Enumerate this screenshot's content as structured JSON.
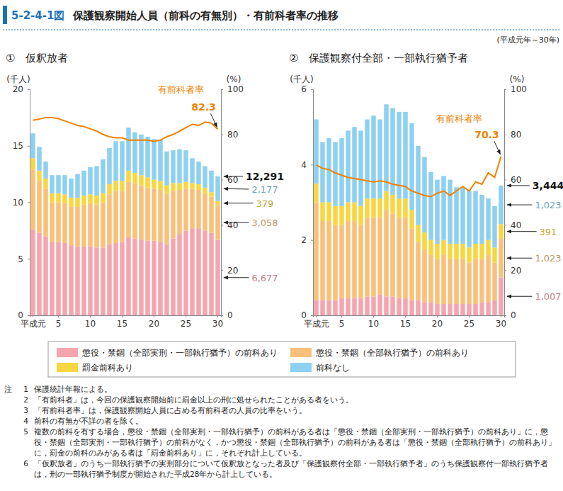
{
  "figure_number": "5-2-4-1図",
  "title": "保護観察開始人員（前科の有無別）・有前科者率の推移",
  "subtitle": "(平成元年～30年)",
  "notes_label": "注",
  "notes": [
    {
      "number": 1,
      "text": "保護統計年報による。"
    },
    {
      "number": 2,
      "text": "「有前科者」は，今回の保護観察開始前に罰金以上の刑に処せられたことがある者をいう。"
    },
    {
      "number": 3,
      "text": "「有前科者率」は，保護観察開始人員に占める有前科者の人員の比率をいう。"
    },
    {
      "number": 4,
      "text": "前科の有無が不詳の者を除く。"
    },
    {
      "number": 5,
      "text": "複数の前科を有する場合，懲役・禁錮（全部実刑・一部執行猶予）の前科がある者は「懲役・禁錮（全部実刑・一部執行猶予）の前科あり」に，懲役・禁錮（全部実刑・一部執行猶予）の前科がなく，かつ懲役・禁錮（全部執行猶予）の前科がある者は「懲役・禁錮（全部執行猶予）の前科あり」に，罰金の前科のみがある者は「罰金前科あり」に，それぞれ計上している。"
    },
    {
      "number": 6,
      "text": "「仮釈放者」のうち一部執行猶予の実刑部分について仮釈放となった者及び「保護観察付全部・一部執行猶予者」のうち保護観察付一部執行猶予者は，刑の一部執行猶予制度が開始された平成28年から計上している。"
    }
  ],
  "chart_data": [
    {
      "type": "bar",
      "stacked": true,
      "legend": "bottom",
      "title": "①　仮釈放者",
      "ylabel": "(千人)",
      "y2label": "(%)",
      "categories": [
        "平成元",
        null,
        null,
        null,
        "5",
        null,
        null,
        null,
        null,
        "10",
        null,
        null,
        null,
        null,
        "15",
        null,
        null,
        null,
        null,
        "20",
        null,
        null,
        null,
        null,
        "25",
        null,
        null,
        null,
        null,
        "30"
      ],
      "ylim": [
        0,
        20
      ],
      "yticks": [
        0,
        5,
        10,
        15,
        20
      ],
      "y2lim": [
        0,
        100
      ],
      "y2ticks": [
        0,
        20,
        40,
        60,
        80,
        100
      ],
      "series": [
        {
          "name": "懲役・禁錮（全部実刑・一部執行猶予）の前科あり",
          "color": "#f5a5ae",
          "values": [
            7.6,
            7.3,
            7.0,
            6.5,
            6.5,
            6.4,
            6.2,
            6.1,
            6.1,
            6.1,
            6.0,
            6.0,
            6.3,
            6.4,
            6.5,
            6.9,
            6.8,
            6.7,
            6.6,
            6.6,
            6.5,
            6.3,
            6.8,
            7.2,
            7.5,
            7.7,
            7.7,
            7.5,
            7.3,
            6.677
          ],
          "value_labels": [
            null,
            null,
            null,
            null,
            null,
            null,
            null,
            null,
            null,
            null,
            null,
            null,
            null,
            null,
            null,
            null,
            null,
            null,
            null,
            null,
            null,
            null,
            null,
            null,
            null,
            null,
            null,
            null,
            null,
            "6,677"
          ]
        },
        {
          "name": "懲役・禁錮（全部執行猶予）の前科あり",
          "color": "#f9c07a",
          "values": [
            5.3,
            4.6,
            4.2,
            3.5,
            3.5,
            3.5,
            3.4,
            3.5,
            3.7,
            3.8,
            3.8,
            4.0,
            4.4,
            4.6,
            4.5,
            4.9,
            4.9,
            4.8,
            4.7,
            4.6,
            4.6,
            4.5,
            4.2,
            3.9,
            3.7,
            3.5,
            3.4,
            3.3,
            3.2,
            3.058
          ],
          "value_labels": [
            null,
            null,
            null,
            null,
            null,
            null,
            null,
            null,
            null,
            null,
            null,
            null,
            null,
            null,
            null,
            null,
            null,
            null,
            null,
            null,
            null,
            null,
            null,
            null,
            null,
            null,
            null,
            null,
            null,
            "3,058"
          ]
        },
        {
          "name": "罰金前科あり",
          "color": "#f6d742",
          "values": [
            1.0,
            0.9,
            0.9,
            0.8,
            0.8,
            0.8,
            0.8,
            0.8,
            0.8,
            0.8,
            0.8,
            0.8,
            0.9,
            0.9,
            0.9,
            1.0,
            0.9,
            0.9,
            0.9,
            0.8,
            0.8,
            0.7,
            0.7,
            0.6,
            0.6,
            0.5,
            0.5,
            0.5,
            0.4,
            0.379
          ],
          "value_labels": [
            null,
            null,
            null,
            null,
            null,
            null,
            null,
            null,
            null,
            null,
            null,
            null,
            null,
            null,
            null,
            null,
            null,
            null,
            null,
            null,
            null,
            null,
            null,
            null,
            null,
            null,
            null,
            null,
            null,
            "379"
          ]
        },
        {
          "name": "前科なし",
          "color": "#8ed0f0",
          "values": [
            2.2,
            2.1,
            1.5,
            1.6,
            1.6,
            1.7,
            1.7,
            2.1,
            2.2,
            2.4,
            2.6,
            3.0,
            3.2,
            3.5,
            3.5,
            3.8,
            3.6,
            3.6,
            3.6,
            3.6,
            3.6,
            3.0,
            2.9,
            3.0,
            2.8,
            2.2,
            2.0,
            1.9,
            1.9,
            2.177
          ],
          "value_labels": [
            null,
            null,
            null,
            null,
            null,
            null,
            null,
            null,
            null,
            null,
            null,
            null,
            null,
            null,
            null,
            null,
            null,
            null,
            null,
            null,
            null,
            null,
            null,
            null,
            null,
            null,
            null,
            null,
            null,
            "2,177"
          ]
        },
        {
          "name": "有前科者率",
          "type": "line",
          "axis": "y2",
          "color": "#ef8200",
          "values": [
            86.3,
            86.8,
            87.5,
            87.5,
            87.0,
            86.0,
            85.0,
            84.0,
            83.5,
            82.5,
            81.5,
            80.0,
            79.0,
            78.5,
            78.5,
            77.5,
            77.5,
            77.5,
            77.5,
            77.0,
            77.5,
            79.0,
            80.0,
            81.5,
            83.0,
            84.5,
            84.0,
            85.5,
            85.0,
            82.3
          ],
          "value_labels": [
            null,
            null,
            null,
            null,
            null,
            null,
            null,
            null,
            null,
            null,
            null,
            null,
            null,
            null,
            null,
            null,
            null,
            null,
            null,
            null,
            null,
            null,
            null,
            null,
            null,
            null,
            null,
            null,
            null,
            "82.3"
          ]
        }
      ],
      "annotations": [
        {
          "text": "12,291",
          "value": 12.291
        }
      ]
    },
    {
      "type": "bar",
      "stacked": true,
      "title": "②　保護観察付全部・一部執行猶予者",
      "ylabel": "(千人)",
      "y2label": "(%)",
      "categories": [
        "平成元",
        null,
        null,
        null,
        "5",
        null,
        null,
        null,
        null,
        "10",
        null,
        null,
        null,
        null,
        "15",
        null,
        null,
        null,
        null,
        "20",
        null,
        null,
        null,
        null,
        "25",
        null,
        null,
        null,
        null,
        "30"
      ],
      "ylim": [
        0,
        6
      ],
      "yticks": [
        0,
        2,
        4,
        6
      ],
      "y2lim": [
        0,
        100
      ],
      "y2ticks": [
        0,
        20,
        40,
        60,
        80,
        100
      ],
      "series": [
        {
          "name": "懲役・禁錮（全部実刑・一部執行猶予）の前科あり",
          "color": "#f5a5ae",
          "values": [
            0.4,
            0.4,
            0.4,
            0.4,
            0.45,
            0.45,
            0.45,
            0.45,
            0.5,
            0.5,
            0.55,
            0.5,
            0.5,
            0.45,
            0.45,
            0.4,
            0.4,
            0.35,
            0.35,
            0.3,
            0.3,
            0.3,
            0.3,
            0.3,
            0.3,
            0.3,
            0.35,
            0.35,
            0.4,
            1.007
          ],
          "value_labels": [
            null,
            null,
            null,
            null,
            null,
            null,
            null,
            null,
            null,
            null,
            null,
            null,
            null,
            null,
            null,
            null,
            null,
            null,
            null,
            null,
            null,
            null,
            null,
            null,
            null,
            null,
            null,
            null,
            null,
            "1,007"
          ]
        },
        {
          "name": "懲役・禁錮（全部執行猶予）の前科あり",
          "color": "#f9c07a",
          "values": [
            2.6,
            2.1,
            2.1,
            2.0,
            1.95,
            2.05,
            2.05,
            1.95,
            2.1,
            2.1,
            2.05,
            2.3,
            2.2,
            2.15,
            2.15,
            1.9,
            1.55,
            1.4,
            1.25,
            1.2,
            1.3,
            1.2,
            1.2,
            1.2,
            1.1,
            1.2,
            1.15,
            1.25,
            1.0,
            1.023
          ],
          "value_labels": [
            null,
            null,
            null,
            null,
            null,
            null,
            null,
            null,
            null,
            null,
            null,
            null,
            null,
            null,
            null,
            null,
            null,
            null,
            null,
            null,
            null,
            null,
            null,
            null,
            null,
            null,
            null,
            null,
            null,
            "1,023"
          ]
        },
        {
          "name": "罰金前科あり",
          "color": "#f6d742",
          "values": [
            0.5,
            0.5,
            0.5,
            0.5,
            0.5,
            0.5,
            0.5,
            0.5,
            0.5,
            0.5,
            0.5,
            0.5,
            0.5,
            0.5,
            0.5,
            0.5,
            0.45,
            0.45,
            0.4,
            0.4,
            0.4,
            0.4,
            0.4,
            0.4,
            0.4,
            0.4,
            0.4,
            0.4,
            0.4,
            0.391
          ],
          "value_labels": [
            null,
            null,
            null,
            null,
            null,
            null,
            null,
            null,
            null,
            null,
            null,
            null,
            null,
            null,
            null,
            null,
            null,
            null,
            null,
            null,
            null,
            null,
            null,
            null,
            null,
            null,
            null,
            null,
            null,
            "391"
          ]
        },
        {
          "name": "前科なし",
          "color": "#8ed0f0",
          "values": [
            1.7,
            1.6,
            1.7,
            1.7,
            1.8,
            1.9,
            2.0,
            2.0,
            2.1,
            2.2,
            2.1,
            2.3,
            2.3,
            2.3,
            2.3,
            2.3,
            2.1,
            2.0,
            1.8,
            1.7,
            1.7,
            1.7,
            1.5,
            1.5,
            1.5,
            1.4,
            1.3,
            1.1,
            1.1,
            1.023
          ],
          "value_labels": [
            null,
            null,
            null,
            null,
            null,
            null,
            null,
            null,
            null,
            null,
            null,
            null,
            null,
            null,
            null,
            null,
            null,
            null,
            null,
            null,
            null,
            null,
            null,
            null,
            null,
            null,
            null,
            null,
            null,
            "1,023"
          ]
        },
        {
          "name": "有前科者率",
          "type": "line",
          "axis": "y2",
          "color": "#ef8200",
          "values": [
            66.5,
            65.0,
            64.5,
            63.0,
            62.0,
            61.0,
            60.5,
            60.0,
            59.5,
            59.0,
            59.5,
            59.0,
            58.0,
            57.5,
            57.0,
            55.0,
            54.0,
            53.0,
            52.5,
            54.0,
            55.0,
            53.0,
            55.0,
            57.0,
            55.0,
            59.0,
            58.0,
            63.0,
            61.0,
            70.3
          ],
          "value_labels": [
            null,
            null,
            null,
            null,
            null,
            null,
            null,
            null,
            null,
            null,
            null,
            null,
            null,
            null,
            null,
            null,
            null,
            null,
            null,
            null,
            null,
            null,
            null,
            null,
            null,
            null,
            null,
            null,
            null,
            "70.3"
          ]
        }
      ],
      "annotations": [
        {
          "text": "3,444",
          "value": 3.444
        }
      ]
    }
  ]
}
